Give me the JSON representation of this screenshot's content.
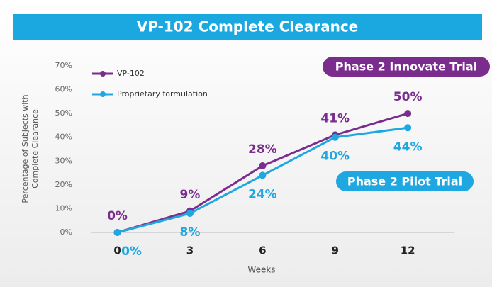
{
  "chart_data": {
    "type": "line",
    "title": "VP-102 Complete Clearance",
    "xlabel": "Weeks",
    "ylabel": [
      "Percentage of Subjects with",
      "Complete Clearance"
    ],
    "x": [
      0,
      3,
      6,
      9,
      12
    ],
    "series": [
      {
        "name": "VP-102",
        "color": "#7b2d8e",
        "values": [
          0,
          9,
          28,
          41,
          50
        ],
        "value_labels": [
          "0%",
          "9%",
          "28%",
          "41%",
          "50%"
        ]
      },
      {
        "name": "Proprietary formulation",
        "color": "#1ea7e1",
        "values": [
          0,
          8,
          24,
          40,
          44
        ],
        "value_labels": [
          "0%",
          "8%",
          "24%",
          "40%",
          "44%"
        ]
      }
    ],
    "xlim": [
      -1.1,
      13.9
    ],
    "xticks": [
      0,
      3,
      6,
      9,
      12
    ],
    "ylim": [
      0,
      70
    ],
    "yticks": [
      {
        "value": 0,
        "label": "0%"
      },
      {
        "value": 10,
        "label": "10%"
      },
      {
        "value": 20,
        "label": "20%"
      },
      {
        "value": 30,
        "label": "30%"
      },
      {
        "value": 40,
        "label": "40%"
      },
      {
        "value": 50,
        "label": "50%"
      },
      {
        "value": 60,
        "label": "60%"
      },
      {
        "value": 70,
        "label": "70%"
      }
    ],
    "grid": false,
    "legend": "upper left",
    "annotations": [
      {
        "text": "Phase 2 Innovate Trial",
        "color": "#7b2d8e"
      },
      {
        "text": "Phase 2 Pilot Trial",
        "color": "#1ea7e1"
      }
    ]
  }
}
